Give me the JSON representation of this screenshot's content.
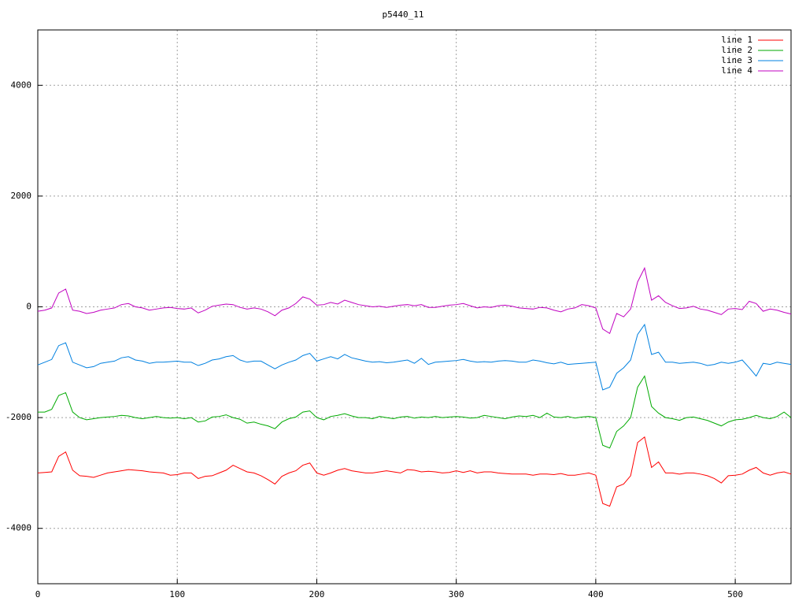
{
  "chart_data": {
    "type": "line",
    "title": "p5440_11",
    "x": [
      0,
      5,
      10,
      15,
      20,
      25,
      30,
      35,
      40,
      45,
      50,
      55,
      60,
      65,
      70,
      75,
      80,
      85,
      90,
      95,
      100,
      105,
      110,
      115,
      120,
      125,
      130,
      135,
      140,
      145,
      150,
      155,
      160,
      165,
      170,
      175,
      180,
      185,
      190,
      195,
      200,
      205,
      210,
      215,
      220,
      225,
      230,
      235,
      240,
      245,
      250,
      255,
      260,
      265,
      270,
      275,
      280,
      285,
      290,
      295,
      300,
      305,
      310,
      315,
      320,
      325,
      330,
      335,
      340,
      345,
      350,
      355,
      360,
      365,
      370,
      375,
      380,
      385,
      390,
      395,
      400,
      405,
      410,
      415,
      420,
      425,
      430,
      435,
      440,
      445,
      450,
      455,
      460,
      465,
      470,
      475,
      480,
      485,
      490,
      495,
      500,
      505,
      510,
      515,
      520,
      525,
      530,
      535,
      540
    ],
    "series": [
      {
        "name": "line 1",
        "color": "#ff0000",
        "values": [
          -3000,
          -2990,
          -2980,
          -2700,
          -2620,
          -2950,
          -3050,
          -3060,
          -3080,
          -3040,
          -3000,
          -2980,
          -2960,
          -2940,
          -2950,
          -2960,
          -2980,
          -2990,
          -3000,
          -3040,
          -3030,
          -3000,
          -3000,
          -3100,
          -3060,
          -3050,
          -3000,
          -2950,
          -2860,
          -2920,
          -2980,
          -3000,
          -3050,
          -3120,
          -3200,
          -3060,
          -3000,
          -2960,
          -2860,
          -2820,
          -3000,
          -3040,
          -3000,
          -2950,
          -2920,
          -2960,
          -2980,
          -3000,
          -3000,
          -2980,
          -2960,
          -2980,
          -3000,
          -2940,
          -2950,
          -2980,
          -2970,
          -2980,
          -3000,
          -2990,
          -2960,
          -2990,
          -2960,
          -3000,
          -2980,
          -2980,
          -3000,
          -3010,
          -3020,
          -3020,
          -3020,
          -3040,
          -3020,
          -3020,
          -3030,
          -3010,
          -3040,
          -3040,
          -3020,
          -3000,
          -3040,
          -3550,
          -3600,
          -3250,
          -3200,
          -3050,
          -2450,
          -2350,
          -2900,
          -2800,
          -3000,
          -3000,
          -3020,
          -3000,
          -3000,
          -3020,
          -3050,
          -3100,
          -3180,
          -3050,
          -3040,
          -3020,
          -2950,
          -2900,
          -3000,
          -3040,
          -3000,
          -2980,
          -3020
        ]
      },
      {
        "name": "line 2",
        "color": "#00aa00",
        "values": [
          -1900,
          -1900,
          -1850,
          -1600,
          -1550,
          -1900,
          -2000,
          -2040,
          -2020,
          -2000,
          -1990,
          -1980,
          -1960,
          -1970,
          -2000,
          -2020,
          -2000,
          -1980,
          -2000,
          -2010,
          -2000,
          -2020,
          -2000,
          -2080,
          -2060,
          -1990,
          -1980,
          -1950,
          -2000,
          -2030,
          -2100,
          -2080,
          -2120,
          -2150,
          -2200,
          -2080,
          -2020,
          -1990,
          -1900,
          -1880,
          -2000,
          -2040,
          -1980,
          -1960,
          -1930,
          -1970,
          -2000,
          -2000,
          -2020,
          -1980,
          -2000,
          -2020,
          -1990,
          -1980,
          -2010,
          -1990,
          -2000,
          -1980,
          -2000,
          -1990,
          -1980,
          -1990,
          -2010,
          -2000,
          -1960,
          -1980,
          -2000,
          -2020,
          -1990,
          -1970,
          -1980,
          -1960,
          -2000,
          -1920,
          -1990,
          -2000,
          -1980,
          -2010,
          -1990,
          -1980,
          -2000,
          -2500,
          -2550,
          -2250,
          -2150,
          -2000,
          -1450,
          -1250,
          -1800,
          -1920,
          -2000,
          -2020,
          -2050,
          -2000,
          -1990,
          -2020,
          -2050,
          -2100,
          -2150,
          -2080,
          -2040,
          -2030,
          -2000,
          -1960,
          -2000,
          -2020,
          -1980,
          -1900,
          -2000
        ]
      },
      {
        "name": "line 3",
        "color": "#0080e0",
        "values": [
          -1050,
          -1000,
          -950,
          -700,
          -650,
          -1000,
          -1050,
          -1100,
          -1080,
          -1020,
          -1000,
          -980,
          -920,
          -900,
          -960,
          -980,
          -1020,
          -1000,
          -1000,
          -990,
          -980,
          -1000,
          -1000,
          -1060,
          -1020,
          -960,
          -940,
          -900,
          -880,
          -960,
          -1000,
          -980,
          -980,
          -1050,
          -1120,
          -1050,
          -1000,
          -960,
          -880,
          -840,
          -980,
          -940,
          -900,
          -940,
          -860,
          -920,
          -950,
          -980,
          -1000,
          -990,
          -1010,
          -1000,
          -980,
          -960,
          -1020,
          -930,
          -1040,
          -1000,
          -990,
          -980,
          -970,
          -950,
          -980,
          -1000,
          -990,
          -1000,
          -980,
          -970,
          -980,
          -1000,
          -1000,
          -960,
          -980,
          -1010,
          -1030,
          -1000,
          -1040,
          -1030,
          -1020,
          -1010,
          -1000,
          -1500,
          -1450,
          -1200,
          -1100,
          -960,
          -500,
          -320,
          -860,
          -820,
          -1000,
          -1000,
          -1020,
          -1010,
          -1000,
          -1020,
          -1060,
          -1040,
          -1000,
          -1020,
          -1000,
          -960,
          -1100,
          -1250,
          -1020,
          -1040,
          -1000,
          -1020,
          -1040
        ]
      },
      {
        "name": "line 4",
        "color": "#c000c0",
        "values": [
          -80,
          -60,
          -20,
          250,
          320,
          -60,
          -80,
          -120,
          -100,
          -60,
          -40,
          -20,
          40,
          60,
          0,
          -20,
          -60,
          -40,
          -20,
          -10,
          -30,
          -40,
          -20,
          -110,
          -60,
          10,
          30,
          50,
          40,
          -10,
          -40,
          -20,
          -40,
          -90,
          -160,
          -60,
          -20,
          60,
          180,
          140,
          30,
          40,
          80,
          50,
          120,
          80,
          40,
          20,
          0,
          10,
          -10,
          10,
          30,
          40,
          20,
          40,
          -10,
          -10,
          10,
          30,
          40,
          60,
          20,
          -20,
          0,
          -10,
          20,
          30,
          10,
          -20,
          -30,
          -40,
          -10,
          -20,
          -60,
          -90,
          -40,
          -20,
          40,
          20,
          -20,
          -400,
          -480,
          -120,
          -180,
          -40,
          450,
          700,
          120,
          200,
          80,
          20,
          -30,
          -20,
          10,
          -40,
          -60,
          -100,
          -140,
          -40,
          -30,
          -50,
          100,
          60,
          -80,
          -40,
          -60,
          -100,
          -130
        ]
      }
    ],
    "xlim": [
      0,
      540
    ],
    "ylim": [
      -5000,
      5000
    ],
    "xticks": [
      0,
      100,
      200,
      300,
      400,
      500
    ],
    "yticks": [
      -4000,
      -2000,
      0,
      2000,
      4000
    ],
    "grid": true,
    "legend": "top-right"
  }
}
